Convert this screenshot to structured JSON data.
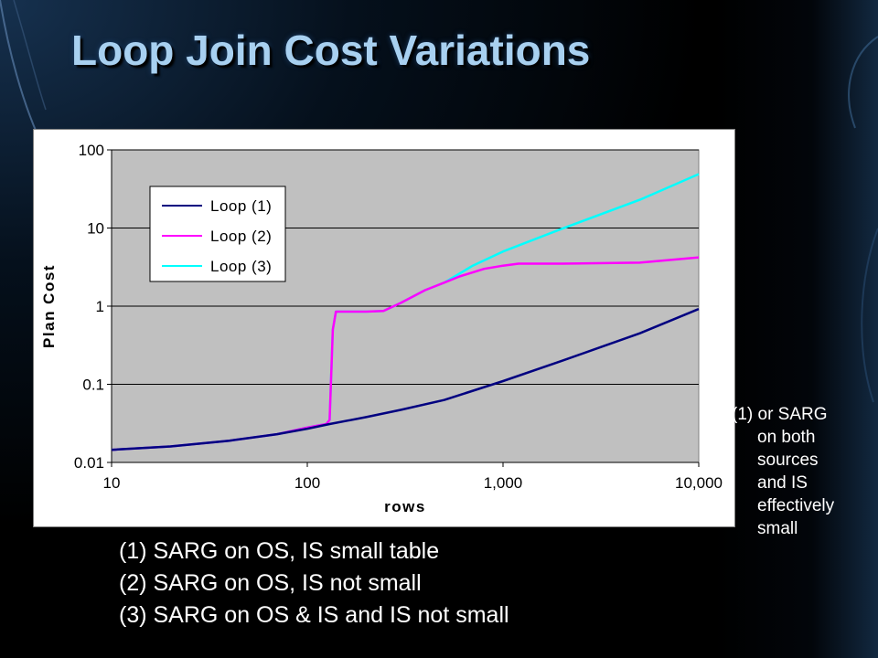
{
  "slide": {
    "title": "Loop Join Cost Variations",
    "notes": [
      "(1) SARG on OS, IS small table",
      "(2) SARG on OS, IS not small",
      "(3) SARG on OS & IS and IS not small"
    ],
    "side_note": {
      "first_line": "(1) or SARG",
      "lines": [
        "on  both",
        "sources",
        "and IS",
        "effectively",
        "small"
      ]
    }
  },
  "chart_data": {
    "type": "line",
    "xlabel": "rows",
    "ylabel": "Plan Cost",
    "x_scale": "log",
    "y_scale": "log",
    "xlim": [
      10,
      10000
    ],
    "ylim": [
      0.01,
      100
    ],
    "x_ticks": [
      10,
      100,
      1000,
      10000
    ],
    "x_tick_labels": [
      "10",
      "100",
      "1,000",
      "10,000"
    ],
    "y_ticks": [
      100,
      10,
      1,
      0.1,
      0.01
    ],
    "y_tick_labels": [
      "100",
      "10",
      "1",
      "0.1",
      "0.01"
    ],
    "grid": "horizontal",
    "plot_background": "#c0c0c0",
    "legend_position": "top-left",
    "series": [
      {
        "name": "Loop (1)",
        "color": "#000080",
        "x": [
          10,
          20,
          40,
          70,
          100,
          130,
          200,
          300,
          500,
          1000,
          2000,
          5000,
          10000
        ],
        "y": [
          0.0145,
          0.016,
          0.019,
          0.023,
          0.027,
          0.031,
          0.038,
          0.047,
          0.063,
          0.11,
          0.2,
          0.45,
          0.92
        ]
      },
      {
        "name": "Loop (2)",
        "color": "#ff00ff",
        "x": [
          10,
          20,
          40,
          70,
          100,
          125,
          130,
          135,
          140,
          150,
          200,
          245,
          300,
          400,
          500,
          600,
          800,
          1000,
          1200,
          2000,
          5000,
          10000
        ],
        "y": [
          0.0145,
          0.016,
          0.019,
          0.023,
          0.028,
          0.031,
          0.035,
          0.5,
          0.85,
          0.85,
          0.85,
          0.87,
          1.1,
          1.6,
          2.0,
          2.4,
          3.0,
          3.3,
          3.5,
          3.5,
          3.6,
          4.2
        ]
      },
      {
        "name": "Loop (3)",
        "color": "#00ffff",
        "x": [
          10,
          20,
          40,
          70,
          100,
          125,
          130,
          135,
          140,
          150,
          200,
          245,
          300,
          400,
          500,
          700,
          1000,
          2000,
          5000,
          10000
        ],
        "y": [
          0.0145,
          0.016,
          0.019,
          0.023,
          0.028,
          0.031,
          0.035,
          0.5,
          0.85,
          0.85,
          0.85,
          0.87,
          1.1,
          1.6,
          2.0,
          3.3,
          5.0,
          9.8,
          23,
          49
        ]
      }
    ]
  }
}
